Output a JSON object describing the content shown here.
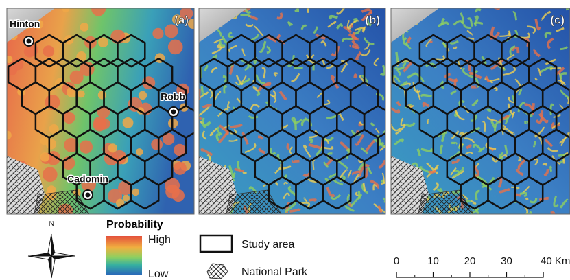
{
  "panels": [
    {
      "label": "(a)"
    },
    {
      "label": "(b)"
    },
    {
      "label": "(c)"
    }
  ],
  "towns": [
    {
      "name": "Hinton"
    },
    {
      "name": "Robb"
    },
    {
      "name": "Cadomin"
    }
  ],
  "legend": {
    "north": "N",
    "probability": {
      "title": "Probability",
      "high": "High",
      "low": "Low"
    },
    "study_area": "Study area",
    "national_park": "National Park"
  },
  "scale_bar": {
    "labels": [
      "0",
      "10",
      "20",
      "30",
      "40 Km"
    ]
  }
}
